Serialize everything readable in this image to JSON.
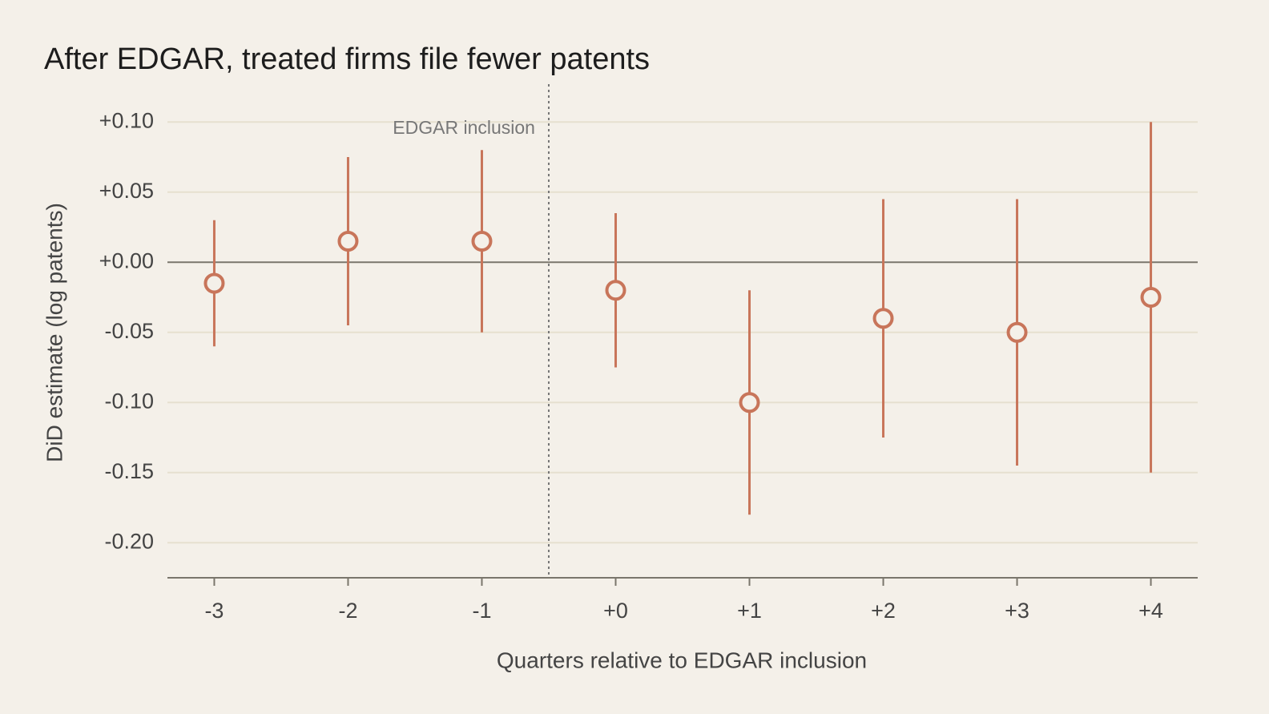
{
  "chart_data": {
    "type": "pointrange",
    "title": "After EDGAR, treated firms file fewer patents",
    "x_label": "Quarters relative to EDGAR inclusion",
    "y_label": "DiD estimate (log patents)",
    "x": [
      -3,
      -2,
      -1,
      0,
      1,
      2,
      3,
      4
    ],
    "values": [
      -0.015,
      0.015,
      0.015,
      -0.02,
      -0.1,
      -0.04,
      -0.05,
      -0.025
    ],
    "errors": [
      0.045,
      0.06,
      0.065,
      0.055,
      0.08,
      0.085,
      0.095,
      0.125
    ],
    "color": "#c8755a",
    "xlim": [
      -3.35,
      4.35
    ],
    "xticks": [
      -3,
      -2,
      -1,
      {
        "value": 0,
        "label": "+0"
      },
      {
        "value": 1,
        "label": "+1"
      },
      {
        "value": 2,
        "label": "+2"
      },
      {
        "value": 3,
        "label": "+3"
      },
      {
        "value": 4,
        "label": "+4"
      }
    ],
    "ylim": [
      -0.225,
      0.127
    ],
    "yticks": [
      {
        "value": 0.1,
        "label": "+0.10"
      },
      {
        "value": 0.05,
        "label": "+0.05"
      },
      {
        "value": 0,
        "label": "+0.00"
      },
      {
        "value": -0.05,
        "label": "-0.05"
      },
      {
        "value": -0.1,
        "label": "-0.10"
      },
      {
        "value": -0.15,
        "label": "-0.15"
      },
      {
        "value": -0.2,
        "label": "-0.20"
      }
    ],
    "grid": true,
    "annotation": {
      "x": -0.5,
      "text": "EDGAR inclusion"
    }
  }
}
